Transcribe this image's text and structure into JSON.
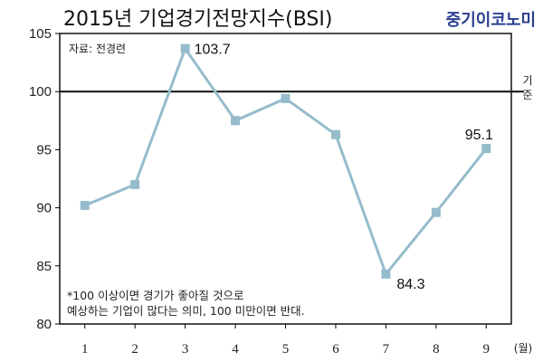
{
  "title": "2015년 기업경기전망지수(BSI)",
  "brand": "중기이코노미",
  "source": "자료: 전경련",
  "baseline_label_chars": [
    "기",
    "준"
  ],
  "x_unit": "(월)",
  "note_lines": [
    "*100 이상이면 경기가 좋아질 것으로",
    "예상하는 기업이 많다는 의미, 100 미만이면 반대."
  ],
  "colors": {
    "line": "#94bccb",
    "marker": "#94bccb",
    "baseline": "#1a1a1a",
    "brand": "#2b3f8f",
    "axis": "#000000"
  },
  "chart_data": {
    "type": "line",
    "title": "2015년 기업경기전망지수(BSI)",
    "categories": [
      "1",
      "2",
      "3",
      "4",
      "5",
      "6",
      "7",
      "8",
      "9"
    ],
    "series": [
      {
        "values": [
          90.2,
          92.0,
          103.7,
          97.5,
          99.4,
          96.3,
          84.3,
          89.6,
          95.1
        ]
      }
    ],
    "labeled_points": [
      {
        "index": 2,
        "text": "103.7"
      },
      {
        "index": 6,
        "text": "84.3"
      },
      {
        "index": 8,
        "text": "95.1"
      }
    ],
    "baseline": 100,
    "ylim": [
      80,
      105
    ],
    "yticks": [
      "80",
      "85",
      "90",
      "95",
      "100",
      "105"
    ],
    "grid": false,
    "legend": "none"
  }
}
